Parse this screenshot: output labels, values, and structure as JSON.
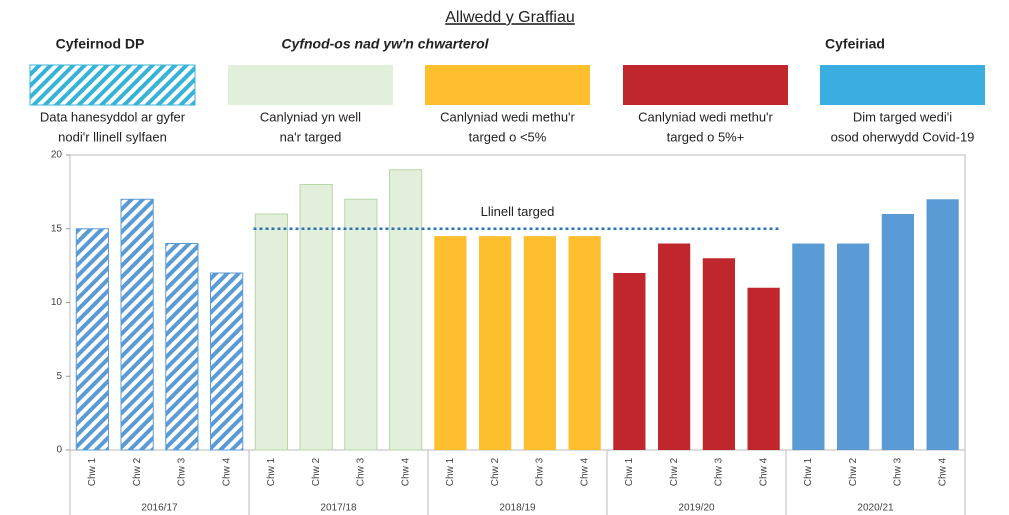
{
  "key": {
    "title": "Allwedd y Graffiau",
    "headings": [
      "Cyfeirnod DP",
      "Cyfnod-os nad yw'n chwarterol",
      "Cyfeiriad"
    ],
    "items": [
      {
        "label": [
          "Data hanesyddol ar gyfer",
          "nodi'r llinell sylfaen"
        ],
        "color": "#36b4d8",
        "hatched": true
      },
      {
        "label": [
          "Canlyniad yn well",
          "na'r targed"
        ],
        "color": "#e2efda",
        "hatched": false
      },
      {
        "label": [
          "Canlyniad wedi methu'r",
          "targed o <5%"
        ],
        "color": "#fdbf2d",
        "hatched": false
      },
      {
        "label": [
          "Canlyniad wedi methu'r",
          "targed o 5%+"
        ],
        "color": "#c0272d",
        "hatched": false
      },
      {
        "label": [
          "Dim targed wedi'i",
          "osod oherwydd Covid-19"
        ],
        "color": "#3aaee0",
        "hatched": false
      }
    ]
  },
  "chart_data": {
    "type": "bar",
    "ylim": [
      0,
      20
    ],
    "yticks": [
      0,
      5,
      10,
      15,
      20
    ],
    "target": {
      "label": "Llinell targed",
      "value": 15
    },
    "groups": [
      {
        "name": "2016/17",
        "color": "#5b9bd5",
        "hatched": true,
        "target": false,
        "categories": [
          "Chw 1",
          "Chw 2",
          "Chw 3",
          "Chw 4"
        ],
        "values": [
          15,
          17,
          14,
          12
        ]
      },
      {
        "name": "2017/18",
        "color": "#e2efda",
        "hatched": false,
        "target": true,
        "categories": [
          "Chw 1",
          "Chw 2",
          "Chw 3",
          "Chw 4"
        ],
        "values": [
          16,
          18,
          17,
          19
        ]
      },
      {
        "name": "2018/19",
        "color": "#fdbf2d",
        "hatched": false,
        "target": true,
        "categories": [
          "Chw 1",
          "Chw 2",
          "Chw 3",
          "Chw 4"
        ],
        "values": [
          14.5,
          14.5,
          14.5,
          14.5
        ]
      },
      {
        "name": "2019/20",
        "color": "#c0272d",
        "hatched": false,
        "target": true,
        "categories": [
          "Chw 1",
          "Chw 2",
          "Chw 3",
          "Chw 4"
        ],
        "values": [
          12,
          14,
          13,
          11
        ]
      },
      {
        "name": "2020/21",
        "color": "#5b9bd5",
        "hatched": false,
        "target": false,
        "categories": [
          "Chw 1",
          "Chw 2",
          "Chw 3",
          "Chw 4"
        ],
        "values": [
          14,
          14,
          16,
          17
        ]
      }
    ]
  }
}
